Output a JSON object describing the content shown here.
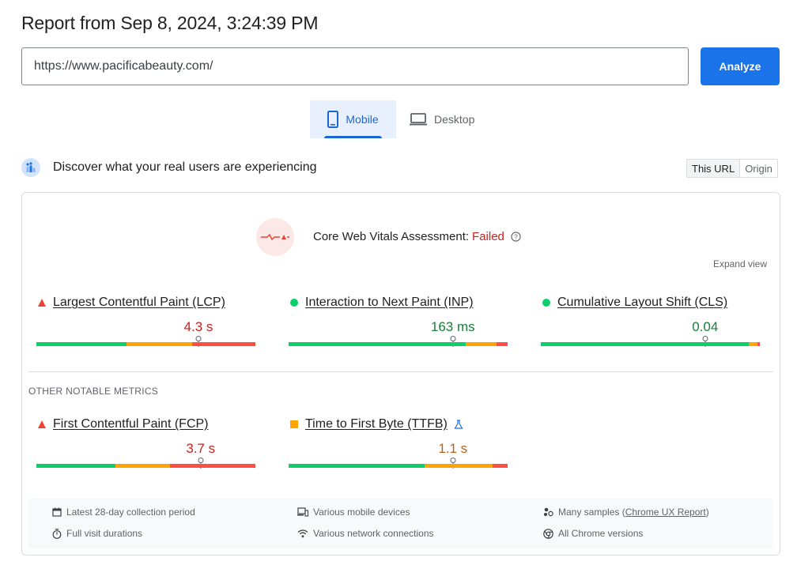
{
  "header": {
    "title": "Report from Sep 8, 2024, 3:24:39 PM"
  },
  "search": {
    "url_value": "https://www.pacificabeauty.com/",
    "analyze_label": "Analyze"
  },
  "tabs": [
    {
      "label": "Mobile",
      "active": true
    },
    {
      "label": "Desktop",
      "active": false
    }
  ],
  "field_data": {
    "heading": "Discover what your real users are experiencing",
    "toggle": {
      "this_url": "This URL",
      "origin": "Origin",
      "selected": "This URL"
    }
  },
  "assessment": {
    "label": "Core Web Vitals Assessment:",
    "status": "Failed",
    "expand_label": "Expand view"
  },
  "core_metrics": [
    {
      "name": "Largest Contentful Paint (LCP)",
      "value": "4.3 s",
      "rating": "poor",
      "value_color": "#c5221f",
      "distribution": {
        "good": 0.41,
        "needs_improvement": 0.3,
        "poor": 0.29
      },
      "marker_fraction": 0.74
    },
    {
      "name": "Interaction to Next Paint (INP)",
      "value": "163 ms",
      "rating": "good",
      "value_color": "#188038",
      "distribution": {
        "good": 0.81,
        "needs_improvement": 0.14,
        "poor": 0.05
      },
      "marker_fraction": 0.75
    },
    {
      "name": "Cumulative Layout Shift (CLS)",
      "value": "0.04",
      "rating": "good",
      "value_color": "#188038",
      "distribution": {
        "good": 0.95,
        "needs_improvement": 0.04,
        "poor": 0.01
      },
      "marker_fraction": 0.75
    }
  ],
  "other_metrics_title": "OTHER NOTABLE METRICS",
  "other_metrics": [
    {
      "name": "First Contentful Paint (FCP)",
      "value": "3.7 s",
      "rating": "poor",
      "value_color": "#c5221f",
      "distribution": {
        "good": 0.36,
        "needs_improvement": 0.25,
        "poor": 0.39
      },
      "marker_fraction": 0.75
    },
    {
      "name": "Time to First Byte (TTFB)",
      "value": "1.1 s",
      "rating": "needs-improvement",
      "value_color": "#b0631e",
      "experimental": true,
      "distribution": {
        "good": 0.62,
        "needs_improvement": 0.31,
        "poor": 0.07
      },
      "marker_fraction": 0.75
    }
  ],
  "info": {
    "collection_period": "Latest 28-day collection period",
    "devices": "Various mobile devices",
    "samples_prefix": "Many samples (",
    "samples_link": "Chrome UX Report",
    "samples_suffix": ")",
    "durations": "Full visit durations",
    "network": "Various network connections",
    "chrome_versions": "All Chrome versions"
  },
  "colors": {
    "accent": "#1a73e8",
    "good": "#0cce6b",
    "needs_improvement": "#ffa400",
    "poor": "#ff4e42"
  },
  "icons": [
    "mobile-phone-icon",
    "laptop-icon",
    "users-chart-icon",
    "waveform-icon",
    "help-circle-icon",
    "flask-icon",
    "calendar-icon",
    "devices-icon",
    "samples-icon",
    "stopwatch-icon",
    "wifi-icon",
    "chrome-icon"
  ]
}
